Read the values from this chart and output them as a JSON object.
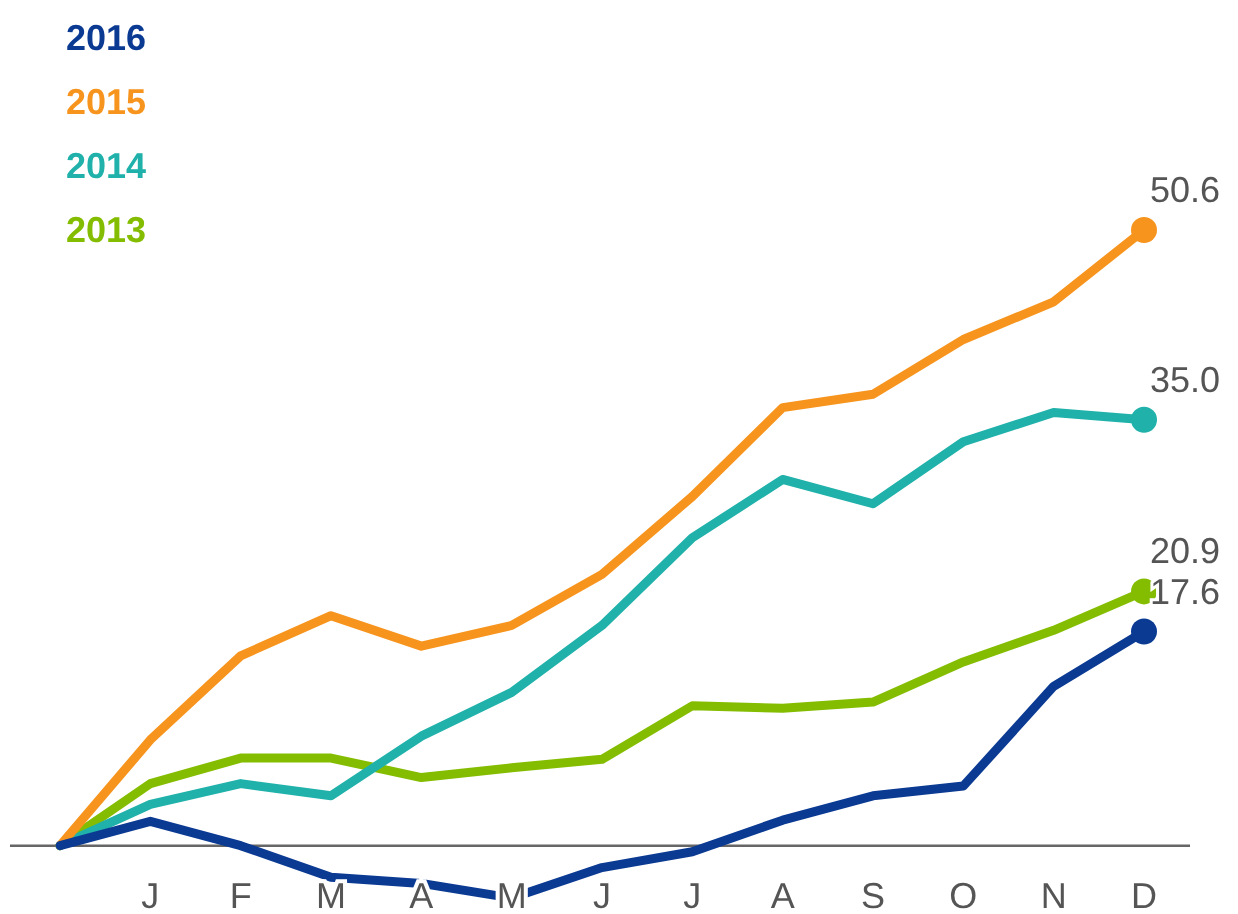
{
  "chart_data": {
    "type": "line",
    "categories": [
      null,
      "J",
      "F",
      "M",
      "A",
      "M",
      "J",
      "J",
      "A",
      "S",
      "O",
      "N",
      "D"
    ],
    "legend": "top left",
    "line_style": "solid",
    "grid": false,
    "series": [
      {
        "name": "2016",
        "color": "#0b3a93",
        "values": [
          0,
          2.0,
          0,
          -2.6,
          -3.1,
          -4.3,
          -1.8,
          -0.5,
          2.1,
          4.1,
          4.9,
          13.1,
          17.6
        ],
        "value_labels": [
          null,
          null,
          null,
          null,
          null,
          null,
          null,
          null,
          null,
          null,
          null,
          null,
          "17.6"
        ]
      },
      {
        "name": "2015",
        "color": "#f7941d",
        "values": [
          0,
          8.7,
          15.6,
          18.9,
          16.4,
          18.1,
          22.3,
          28.7,
          36.0,
          37.1,
          41.6,
          44.7,
          50.6
        ],
        "value_labels": [
          null,
          null,
          null,
          null,
          null,
          null,
          null,
          null,
          null,
          null,
          null,
          null,
          "50.6"
        ]
      },
      {
        "name": "2014",
        "color": "#1fb1aa",
        "values": [
          0,
          3.4,
          5.1,
          4.1,
          9.0,
          12.6,
          18.1,
          25.3,
          30.1,
          28.1,
          33.2,
          35.6,
          35.0
        ],
        "value_labels": [
          null,
          null,
          null,
          null,
          null,
          null,
          null,
          null,
          null,
          null,
          null,
          null,
          "35.0"
        ]
      },
      {
        "name": "2013",
        "color": "#84bd00",
        "values": [
          0,
          5.1,
          7.2,
          7.2,
          5.6,
          6.4,
          7.1,
          11.5,
          11.3,
          11.8,
          15.1,
          17.7,
          20.9
        ],
        "value_labels": [
          null,
          null,
          null,
          null,
          null,
          null,
          null,
          null,
          null,
          null,
          null,
          null,
          "20.9"
        ]
      }
    ]
  }
}
